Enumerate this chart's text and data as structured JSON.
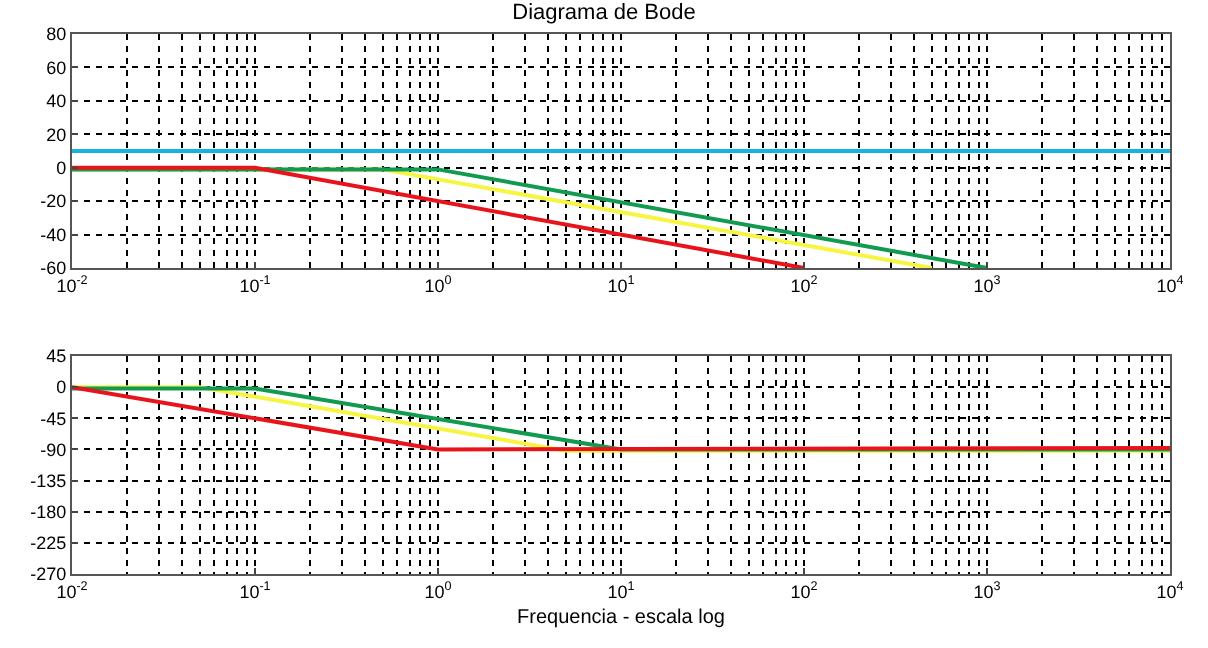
{
  "chart_data": [
    {
      "type": "line",
      "title": "Diagrama de Bode",
      "log": "x",
      "grid": true,
      "line_style": "solid",
      "marker": "none",
      "xlim": [
        0.01,
        10000
      ],
      "xticks": [
        {
          "value": 0.01,
          "label": "10$^{-2}$"
        },
        {
          "value": 0.1,
          "label": "10$^{-1}$"
        },
        {
          "value": 1,
          "label": "10$^{0}$"
        },
        {
          "value": 10,
          "label": "10$^{1}$"
        },
        {
          "value": 100,
          "label": "10$^{2}$"
        },
        {
          "value": 1000,
          "label": "10$^{3}$"
        },
        {
          "value": 10000,
          "label": "10$^{4}$"
        }
      ],
      "ylim": [
        -60,
        80
      ],
      "yticks": [
        -60,
        -40,
        -20,
        0,
        20,
        40,
        60,
        80
      ],
      "series": [
        {
          "color": "#1ab0e0",
          "x": [
            0.01,
            10000
          ],
          "values": [
            10,
            10
          ]
        },
        {
          "color": "#f5f542",
          "x": [
            0.01,
            0.5,
            500
          ],
          "values": [
            -1,
            -1,
            -60
          ]
        },
        {
          "color": "#129a50",
          "x": [
            0.01,
            1,
            1000
          ],
          "values": [
            -1,
            -1,
            -60
          ]
        },
        {
          "color": "#e8141c",
          "x": [
            0.01,
            0.1,
            100
          ],
          "values": [
            0,
            0,
            -60
          ]
        }
      ]
    },
    {
      "type": "line",
      "xlabel": "Frequencia - escala log",
      "log": "x",
      "grid": true,
      "line_style": "solid",
      "marker": "none",
      "xlim": [
        0.01,
        10000
      ],
      "xticks": [
        {
          "value": 0.01,
          "label": "10$^{-2}$"
        },
        {
          "value": 0.1,
          "label": "10$^{-1}$"
        },
        {
          "value": 1,
          "label": "10$^{0}$"
        },
        {
          "value": 10,
          "label": "10$^{1}$"
        },
        {
          "value": 100,
          "label": "10$^{2}$"
        },
        {
          "value": 1000,
          "label": "10$^{3}$"
        },
        {
          "value": 10000,
          "label": "10$^{4}$"
        }
      ],
      "ylim": [
        -270,
        45
      ],
      "yticks": [
        -270,
        -225,
        -180,
        -135,
        -90,
        -45,
        0,
        45
      ],
      "series": [
        {
          "color": "#f5f542",
          "x": [
            0.01,
            0.05,
            5,
            10000
          ],
          "values": [
            0,
            0,
            -92,
            -92
          ]
        },
        {
          "color": "#129a50",
          "x": [
            0.01,
            0.1,
            10,
            10000
          ],
          "values": [
            -2,
            -2,
            -90,
            -90
          ]
        },
        {
          "color": "#e8141c",
          "x": [
            0.01,
            1,
            10000
          ],
          "values": [
            0,
            -90,
            -88
          ]
        }
      ]
    }
  ]
}
